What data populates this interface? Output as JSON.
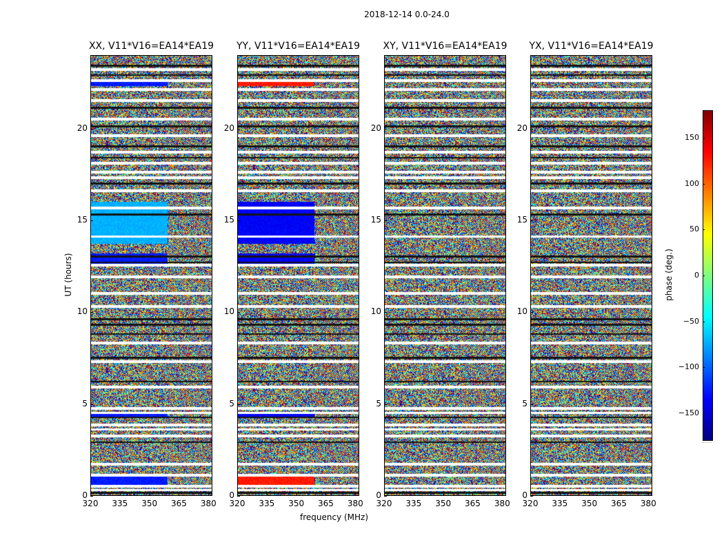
{
  "figure": {
    "suptitle": "2018-12-14 0.0-24.0",
    "colormap": "jet"
  },
  "chart_data": [
    {
      "type": "heatmap",
      "title": "XX, V11*V16=EA14*EA19",
      "xlabel": "",
      "ylabel": "UT (hours)",
      "xlim": [
        320,
        382
      ],
      "ylim": [
        0,
        24
      ],
      "xticks": [
        320,
        335,
        350,
        365,
        380
      ],
      "yticks": [
        0,
        5,
        10,
        15,
        20
      ],
      "xticklabels": [
        "320",
        "335",
        "350",
        "365",
        "380"
      ],
      "yticklabels": [
        "0",
        "5",
        "10",
        "15",
        "20"
      ],
      "zlim": [
        -180,
        180
      ],
      "values": "phase (deg.) vs frequency and time, mostly noisy with coherent bands near 0.5–1.1 h and 12–16 h"
    },
    {
      "type": "heatmap",
      "title": "YY, V11*V16=EA14*EA19",
      "xlabel": "frequency (MHz)",
      "ylabel": "",
      "xlim": [
        320,
        382
      ],
      "ylim": [
        0,
        24
      ],
      "xticks": [
        320,
        335,
        350,
        365,
        380
      ],
      "yticks": [
        0,
        5,
        10,
        15,
        20
      ],
      "xticklabels": [
        "320",
        "335",
        "350",
        "365",
        "380"
      ],
      "yticklabels": [
        "0",
        "5",
        "10",
        "15",
        "20"
      ],
      "zlim": [
        -180,
        180
      ]
    },
    {
      "type": "heatmap",
      "title": "XY, V11*V16=EA14*EA19",
      "xlabel": "",
      "ylabel": "",
      "xlim": [
        320,
        382
      ],
      "ylim": [
        0,
        24
      ],
      "xticks": [
        320,
        335,
        350,
        365,
        380
      ],
      "yticks": [
        0,
        5,
        10,
        15,
        20
      ],
      "xticklabels": [
        "320",
        "335",
        "350",
        "365",
        "380"
      ],
      "yticklabels": [
        "0",
        "5",
        "10",
        "15",
        "20"
      ],
      "zlim": [
        -180,
        180
      ]
    },
    {
      "type": "heatmap",
      "title": "YX, V11*V16=EA14*EA19",
      "xlabel": "",
      "ylabel": "",
      "xlim": [
        320,
        382
      ],
      "ylim": [
        0,
        24
      ],
      "xticks": [
        320,
        335,
        350,
        365,
        380
      ],
      "yticks": [
        0,
        5,
        10,
        15,
        20
      ],
      "xticklabels": [
        "320",
        "335",
        "350",
        "365",
        "380"
      ],
      "yticklabels": [
        "0",
        "5",
        "10",
        "15",
        "20"
      ],
      "zlim": [
        -180,
        180
      ]
    }
  ],
  "colorbar": {
    "label": "phase (deg.)",
    "range": [
      -180,
      180
    ],
    "ticks": [
      150,
      100,
      50,
      0,
      -50,
      -100,
      -150
    ],
    "ticklabels": [
      "150",
      "100",
      "50",
      "0",
      "−50",
      "−100",
      "−150"
    ],
    "footnote": "......"
  }
}
